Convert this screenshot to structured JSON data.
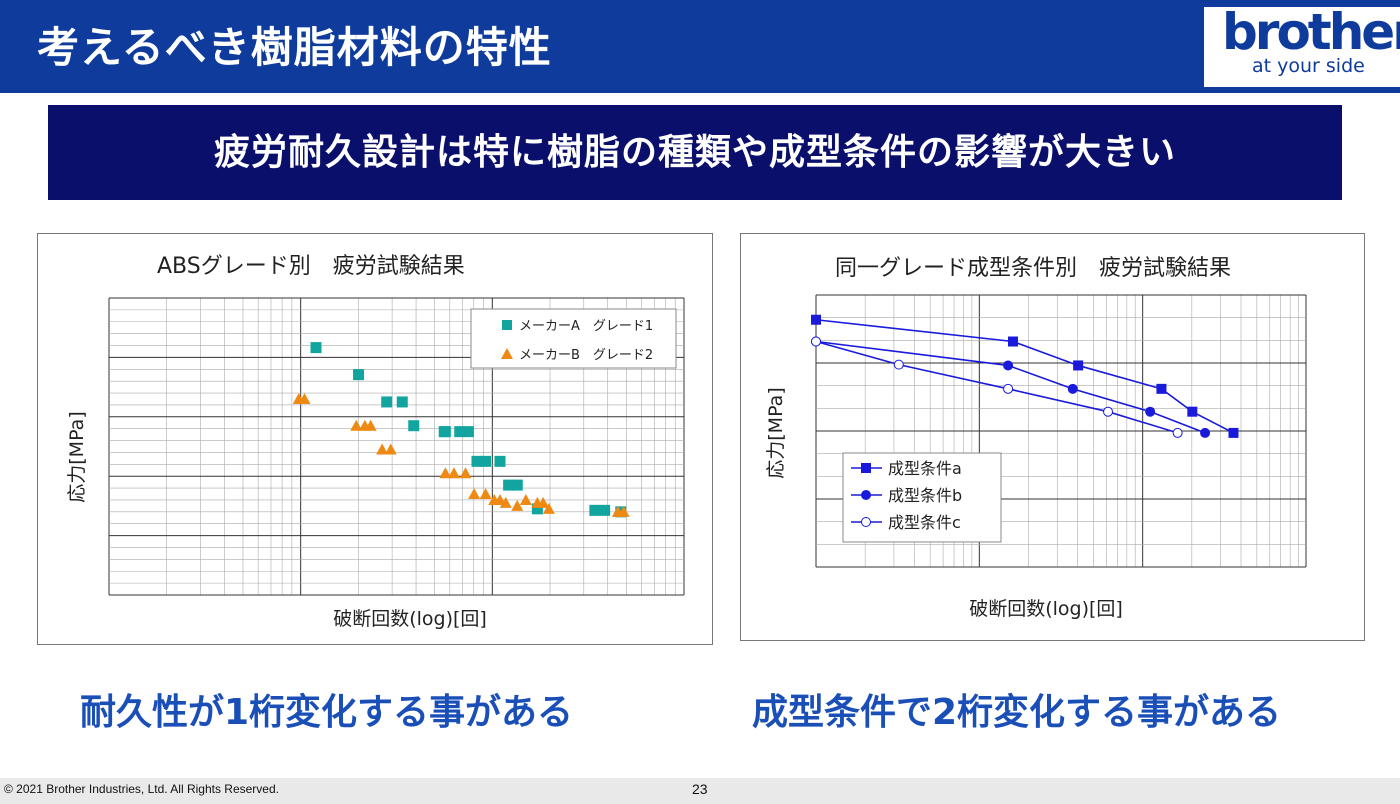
{
  "header": {
    "title": "考えるべき樹脂材料の特性",
    "logo_word": "brother",
    "logo_tagline": "at your side"
  },
  "banner": {
    "text": "疲労耐久設計は特に樹脂の種類や成型条件の影響が大きい"
  },
  "captions": {
    "left": "耐久性が1桁変化する事がある",
    "right": "成型条件で2桁変化する事がある"
  },
  "footer": {
    "copyright": "© 2021 Brother Industries, Ltd. All Rights Reserved.",
    "page": "23"
  },
  "colors": {
    "header": "#0e3b9c",
    "banner": "#0a0f6b",
    "caption": "#1b4fb8",
    "teal": "#12a5a0",
    "orange": "#ee8a14",
    "series_blue": "#1a1adb"
  },
  "chart_data": [
    {
      "type": "scatter",
      "title": "ABSグレード別　疲労試験結果",
      "xlabel": "破断回数(log)[回]",
      "ylabel": "応力[MPa]",
      "xlim": [
        0,
        1
      ],
      "ylim": [
        0,
        1
      ],
      "grid": true,
      "legend_position": "top-right",
      "series": [
        {
          "name": "メーカーA　グレード1",
          "marker": "square",
          "color": "#12a5a0",
          "x": [
            0.36,
            0.434,
            0.483,
            0.51,
            0.53,
            0.583,
            0.585,
            0.61,
            0.625,
            0.64,
            0.655,
            0.68,
            0.695,
            0.71,
            0.745,
            0.845,
            0.862,
            0.89
          ],
          "y": [
            0.833,
            0.742,
            0.65,
            0.65,
            0.57,
            0.55,
            0.55,
            0.55,
            0.55,
            0.45,
            0.45,
            0.45,
            0.37,
            0.37,
            0.29,
            0.285,
            0.285,
            0.28
          ]
        },
        {
          "name": "メーカーB　グレード2",
          "marker": "triangle",
          "color": "#ee8a14",
          "x": [
            0.33,
            0.34,
            0.43,
            0.445,
            0.455,
            0.475,
            0.49,
            0.585,
            0.6,
            0.62,
            0.635,
            0.655,
            0.67,
            0.68,
            0.69,
            0.71,
            0.725,
            0.745,
            0.755,
            0.765,
            0.885,
            0.895
          ],
          "y": [
            0.66,
            0.66,
            0.57,
            0.57,
            0.57,
            0.49,
            0.49,
            0.41,
            0.41,
            0.41,
            0.34,
            0.34,
            0.32,
            0.32,
            0.31,
            0.3,
            0.32,
            0.31,
            0.31,
            0.29,
            0.28,
            0.28
          ]
        }
      ]
    },
    {
      "type": "line",
      "title": "同一グレード成型条件別　疲労試験結果",
      "xlabel": "破断回数(log)[回]",
      "ylabel": "応力[MPa]",
      "xlim": [
        0,
        1
      ],
      "ylim": [
        0,
        1
      ],
      "grid": true,
      "legend_position": "bottom-left",
      "series": [
        {
          "name": "成型条件a",
          "marker": "square",
          "color": "#1a1adb",
          "x": [
            0.0,
            0.402,
            0.535,
            0.705,
            0.768,
            0.852
          ],
          "y": [
            0.909,
            0.829,
            0.741,
            0.655,
            0.571,
            0.493
          ]
        },
        {
          "name": "成型条件b",
          "marker": "circle",
          "color": "#1a1adb",
          "x": [
            0.0,
            0.392,
            0.524,
            0.682,
            0.794
          ],
          "y": [
            0.829,
            0.741,
            0.655,
            0.571,
            0.493
          ]
        },
        {
          "name": "成型条件c",
          "marker": "circle-open",
          "color": "#1a1adb",
          "x": [
            0.0,
            0.169,
            0.392,
            0.596,
            0.738
          ],
          "y": [
            0.829,
            0.744,
            0.655,
            0.571,
            0.493
          ]
        }
      ]
    }
  ]
}
